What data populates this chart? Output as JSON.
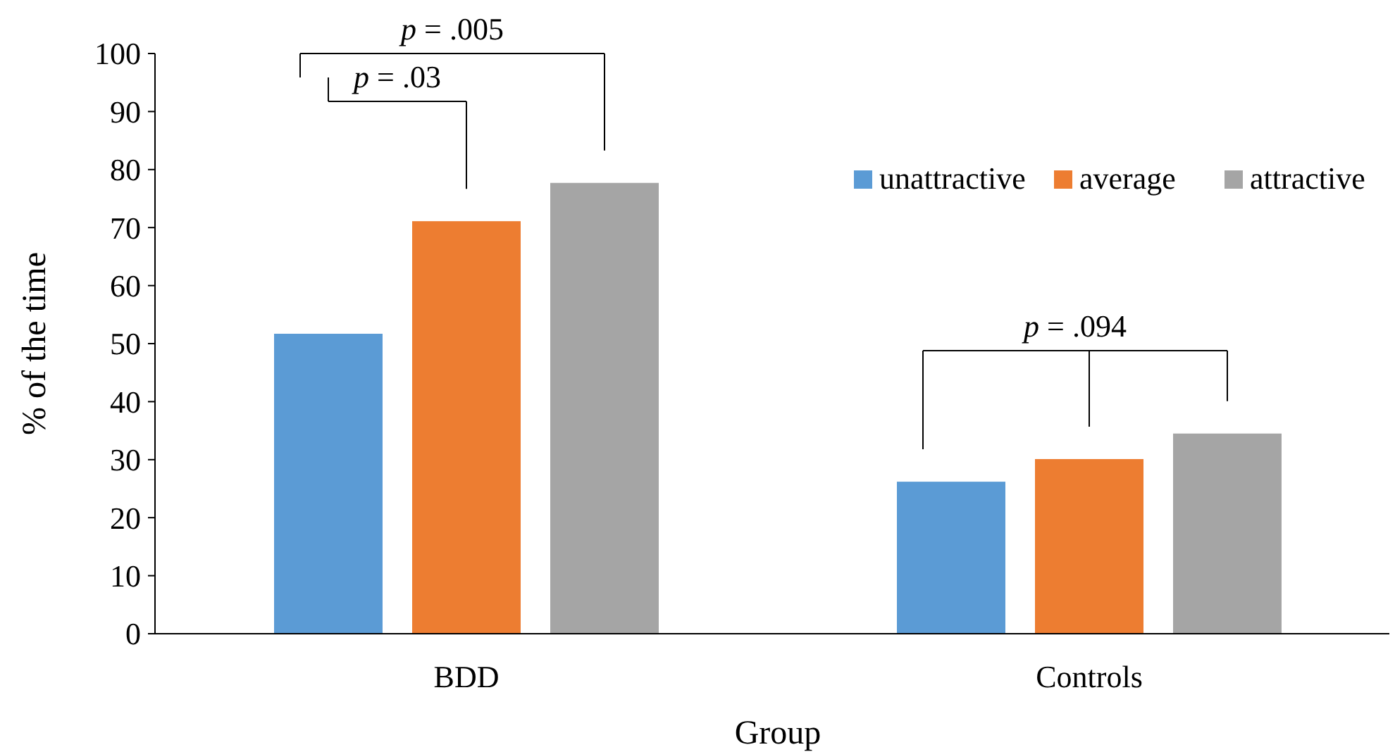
{
  "chart_data": {
    "type": "bar",
    "xlabel": "Group",
    "ylabel": "% of the time",
    "categories": [
      "BDD",
      "Controls"
    ],
    "series": [
      {
        "name": "unattractive",
        "color": "#5b9bd5",
        "values": [
          51.7,
          26.2
        ]
      },
      {
        "name": "average",
        "color": "#ed7d31",
        "values": [
          71.1,
          30.1
        ]
      },
      {
        "name": "attractive",
        "color": "#a5a5a5",
        "values": [
          77.7,
          34.5
        ]
      }
    ],
    "ylim": [
      0,
      100
    ],
    "yticks": [
      0,
      10,
      20,
      30,
      40,
      50,
      60,
      70,
      80,
      90,
      100
    ],
    "grid": false,
    "legend": "top right",
    "annotations": [
      "p = .005",
      "p = .03",
      "p = .094"
    ]
  }
}
